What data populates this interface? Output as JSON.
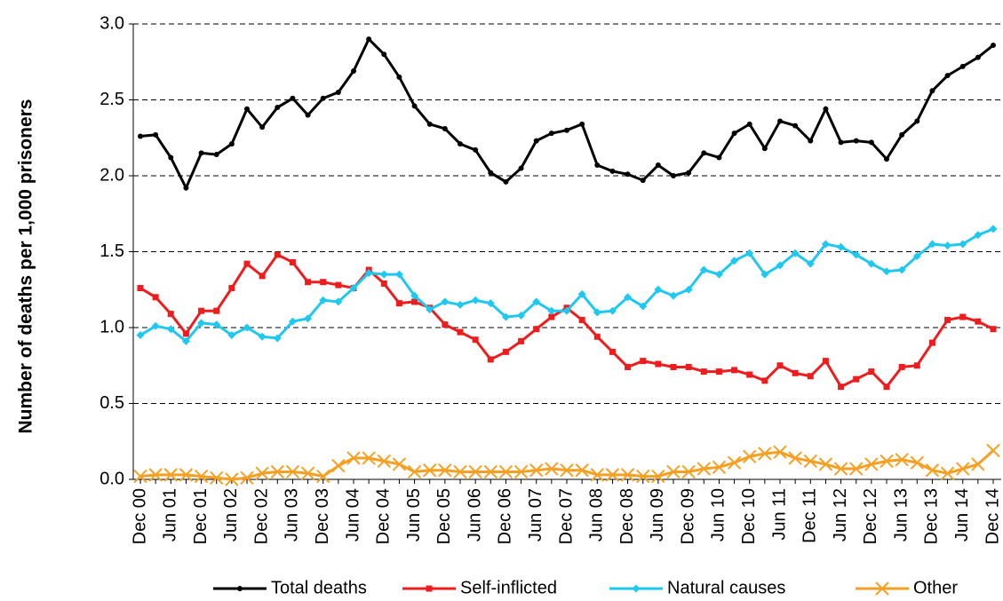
{
  "chart_data": {
    "type": "line",
    "y_label": "Number of deaths per 1,000 prisoners",
    "categories": [
      "Dec 00",
      null,
      "Jun 01",
      null,
      "Dec 01",
      null,
      "Jun 02",
      null,
      "Dec 02",
      null,
      "Jun 03",
      null,
      "Dec 03",
      null,
      "Jun 04",
      null,
      "Dec 04",
      null,
      "Jun 05",
      null,
      "Dec 05",
      null,
      "Jun 06",
      null,
      "Dec 06",
      null,
      "Jun 07",
      null,
      "Dec 07",
      null,
      "Jun 08",
      null,
      "Dec 08",
      null,
      "Jun 09",
      null,
      "Dec 09",
      null,
      "Jun 10",
      null,
      "Dec 10",
      null,
      "Jun 11",
      null,
      "Dec 11",
      null,
      "Jun 12",
      null,
      "Dec 12",
      null,
      "Jun 13",
      null,
      "Dec 13",
      null,
      "Jun 14",
      null,
      "Dec 14"
    ],
    "series": [
      {
        "name": "Total deaths",
        "color": "#000000",
        "marker": "circle",
        "values": [
          2.26,
          2.27,
          2.12,
          1.92,
          2.15,
          2.14,
          2.21,
          2.44,
          2.32,
          2.45,
          2.51,
          2.4,
          2.51,
          2.55,
          2.69,
          2.9,
          2.8,
          2.65,
          2.46,
          2.34,
          2.31,
          2.21,
          2.17,
          2.02,
          1.96,
          2.05,
          2.23,
          2.28,
          2.3,
          2.34,
          2.07,
          2.03,
          2.01,
          1.97,
          2.07,
          2.0,
          2.02,
          2.15,
          2.12,
          2.28,
          2.34,
          2.18,
          2.36,
          2.33,
          2.23,
          2.44,
          2.22,
          2.23,
          2.22,
          2.11,
          2.27,
          2.36,
          2.56,
          2.66,
          2.72,
          2.78,
          2.86
        ]
      },
      {
        "name": "Self-inflicted",
        "color": "#ee1c1c",
        "marker": "square",
        "values": [
          1.26,
          1.2,
          1.09,
          0.96,
          1.11,
          1.11,
          1.26,
          1.42,
          1.34,
          1.48,
          1.43,
          1.3,
          1.3,
          1.28,
          1.26,
          1.38,
          1.29,
          1.16,
          1.17,
          1.13,
          1.02,
          0.97,
          0.92,
          0.79,
          0.84,
          0.91,
          0.99,
          1.07,
          1.13,
          1.05,
          0.94,
          0.84,
          0.74,
          0.78,
          0.76,
          0.74,
          0.74,
          0.71,
          0.71,
          0.72,
          0.69,
          0.65,
          0.75,
          0.7,
          0.68,
          0.78,
          0.61,
          0.66,
          0.71,
          0.61,
          0.74,
          0.75,
          0.9,
          1.05,
          1.07,
          1.04,
          0.99
        ]
      },
      {
        "name": "Natural causes",
        "color": "#1ec8f0",
        "marker": "diamond",
        "values": [
          0.95,
          1.01,
          0.99,
          0.91,
          1.03,
          1.02,
          0.95,
          1.0,
          0.94,
          0.93,
          1.04,
          1.06,
          1.18,
          1.17,
          1.26,
          1.36,
          1.35,
          1.35,
          1.21,
          1.12,
          1.17,
          1.15,
          1.18,
          1.16,
          1.07,
          1.08,
          1.17,
          1.11,
          1.11,
          1.22,
          1.1,
          1.11,
          1.2,
          1.14,
          1.25,
          1.21,
          1.25,
          1.38,
          1.35,
          1.44,
          1.49,
          1.35,
          1.41,
          1.49,
          1.42,
          1.55,
          1.53,
          1.48,
          1.42,
          1.37,
          1.38,
          1.47,
          1.55,
          1.54,
          1.55,
          1.61,
          1.65
        ]
      },
      {
        "name": "Other",
        "color": "#f5a023",
        "marker": "x",
        "values": [
          0.02,
          0.03,
          0.03,
          0.03,
          0.02,
          0.01,
          0.0,
          0.01,
          0.04,
          0.05,
          0.05,
          0.04,
          0.02,
          0.09,
          0.14,
          0.14,
          0.12,
          0.1,
          0.05,
          0.06,
          0.06,
          0.05,
          0.05,
          0.05,
          0.05,
          0.05,
          0.06,
          0.07,
          0.06,
          0.06,
          0.03,
          0.03,
          0.03,
          0.02,
          0.02,
          0.05,
          0.05,
          0.07,
          0.08,
          0.11,
          0.15,
          0.17,
          0.18,
          0.14,
          0.12,
          0.1,
          0.07,
          0.07,
          0.1,
          0.12,
          0.13,
          0.11,
          0.06,
          0.04,
          0.07,
          0.1,
          0.19
        ]
      }
    ],
    "ylim": [
      0,
      3
    ],
    "yticks": [
      {
        "value": 0,
        "label": "0.0"
      },
      0.5,
      {
        "value": 1,
        "label": "1.0"
      },
      1.5,
      {
        "value": 2,
        "label": "2.0"
      },
      2.5,
      {
        "value": 3,
        "label": "3.0"
      }
    ],
    "grid": true,
    "legend": "bottom"
  }
}
